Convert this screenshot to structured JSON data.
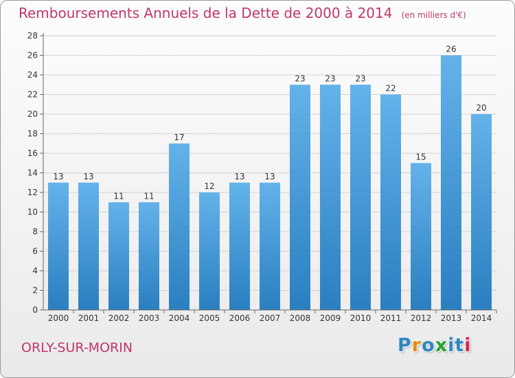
{
  "title": "Remboursements Annuels de la Dette de 2000 à 2014",
  "unit_note": "(en milliers d'€)",
  "commune": "ORLY-SUR-MORIN",
  "logo": {
    "letters": [
      "P",
      "r",
      "o",
      "x",
      "i",
      "t",
      "i"
    ],
    "colors": [
      "#2e86c1",
      "#e8890c",
      "#2e86c1",
      "#2aa52a",
      "#2e86c1",
      "#2e86c1",
      "#d4264f"
    ]
  },
  "colors": {
    "bar_light": "#64b2ea",
    "bar_dark": "#2a7fc0",
    "title": "#c0366b"
  },
  "chart_data": {
    "type": "bar",
    "title": "Remboursements Annuels de la Dette de 2000 à 2014",
    "xlabel": "",
    "ylabel": "",
    "categories": [
      "2000",
      "2001",
      "2002",
      "2003",
      "2004",
      "2005",
      "2006",
      "2007",
      "2008",
      "2009",
      "2010",
      "2011",
      "2012",
      "2013",
      "2014"
    ],
    "values": [
      13,
      13,
      11,
      11,
      17,
      12,
      13,
      13,
      23,
      23,
      23,
      22,
      15,
      26,
      20
    ],
    "ylim": [
      0,
      28
    ],
    "yticks": [
      0,
      2,
      4,
      6,
      8,
      10,
      12,
      14,
      16,
      18,
      20,
      22,
      24,
      26,
      28
    ],
    "grid": true
  }
}
